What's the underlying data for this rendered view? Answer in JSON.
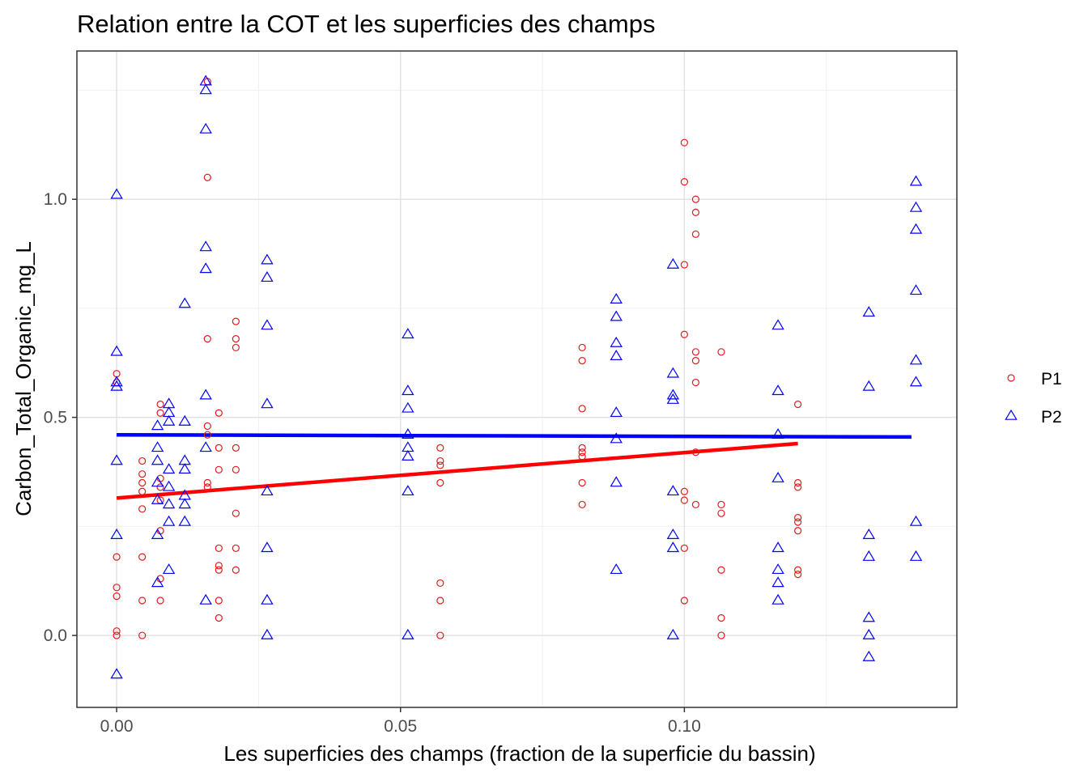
{
  "chart_data": {
    "type": "scatter",
    "title": "Relation entre la COT et les superficies des champs",
    "xlabel": "Les superficies des champs (fraction de la superficie du bassin)",
    "ylabel": "Carbon_Total_Organic_mg_L",
    "xlim": [
      -0.007,
      0.148
    ],
    "ylim": [
      -0.165,
      1.34
    ],
    "x_ticks": [
      0.0,
      0.05,
      0.1
    ],
    "x_tick_labels": [
      "0.00",
      "0.05",
      "0.10"
    ],
    "x_minor_ticks": [
      0.025,
      0.075,
      0.125
    ],
    "y_ticks": [
      0.0,
      0.5,
      1.0
    ],
    "y_tick_labels": [
      "0.0",
      "0.5",
      "1.0"
    ],
    "y_minor_ticks": [
      0.25,
      0.75,
      1.25
    ],
    "grid": true,
    "legend_position": "right",
    "series": [
      {
        "name": "P1",
        "color": "#e31a1c",
        "marker": "circle",
        "trend": {
          "x": [
            0.0,
            0.12
          ],
          "y": [
            0.315,
            0.44
          ]
        },
        "points": [
          [
            0.0,
            0.6
          ],
          [
            0.0,
            0.58
          ],
          [
            0.0,
            0.18
          ],
          [
            0.0,
            0.11
          ],
          [
            0.0,
            0.09
          ],
          [
            0.0,
            0.01
          ],
          [
            0.0,
            0.0
          ],
          [
            0.0045,
            0.4
          ],
          [
            0.0045,
            0.37
          ],
          [
            0.0045,
            0.35
          ],
          [
            0.0045,
            0.33
          ],
          [
            0.0045,
            0.29
          ],
          [
            0.0045,
            0.18
          ],
          [
            0.0045,
            0.08
          ],
          [
            0.0045,
            0.0
          ],
          [
            0.0077,
            0.53
          ],
          [
            0.0077,
            0.51
          ],
          [
            0.0077,
            0.36
          ],
          [
            0.0077,
            0.34
          ],
          [
            0.0077,
            0.31
          ],
          [
            0.0077,
            0.24
          ],
          [
            0.0077,
            0.13
          ],
          [
            0.0077,
            0.08
          ],
          [
            0.016,
            1.27
          ],
          [
            0.016,
            1.05
          ],
          [
            0.016,
            0.68
          ],
          [
            0.016,
            0.48
          ],
          [
            0.016,
            0.46
          ],
          [
            0.016,
            0.35
          ],
          [
            0.016,
            0.34
          ],
          [
            0.018,
            0.51
          ],
          [
            0.018,
            0.43
          ],
          [
            0.018,
            0.38
          ],
          [
            0.018,
            0.2
          ],
          [
            0.018,
            0.16
          ],
          [
            0.018,
            0.15
          ],
          [
            0.018,
            0.08
          ],
          [
            0.018,
            0.04
          ],
          [
            0.021,
            0.72
          ],
          [
            0.021,
            0.68
          ],
          [
            0.021,
            0.66
          ],
          [
            0.021,
            0.43
          ],
          [
            0.021,
            0.38
          ],
          [
            0.021,
            0.28
          ],
          [
            0.021,
            0.2
          ],
          [
            0.021,
            0.15
          ],
          [
            0.057,
            0.43
          ],
          [
            0.057,
            0.4
          ],
          [
            0.057,
            0.39
          ],
          [
            0.057,
            0.35
          ],
          [
            0.057,
            0.12
          ],
          [
            0.057,
            0.08
          ],
          [
            0.057,
            0.0
          ],
          [
            0.082,
            0.66
          ],
          [
            0.082,
            0.63
          ],
          [
            0.082,
            0.52
          ],
          [
            0.082,
            0.43
          ],
          [
            0.082,
            0.42
          ],
          [
            0.082,
            0.41
          ],
          [
            0.082,
            0.35
          ],
          [
            0.082,
            0.3
          ],
          [
            0.1,
            1.13
          ],
          [
            0.1,
            1.04
          ],
          [
            0.1,
            0.85
          ],
          [
            0.1,
            0.69
          ],
          [
            0.1,
            0.33
          ],
          [
            0.1,
            0.31
          ],
          [
            0.1,
            0.2
          ],
          [
            0.1,
            0.08
          ],
          [
            0.102,
            1.0
          ],
          [
            0.102,
            0.97
          ],
          [
            0.102,
            0.92
          ],
          [
            0.102,
            0.65
          ],
          [
            0.102,
            0.63
          ],
          [
            0.102,
            0.58
          ],
          [
            0.102,
            0.42
          ],
          [
            0.102,
            0.3
          ],
          [
            0.1065,
            0.65
          ],
          [
            0.1065,
            0.3
          ],
          [
            0.1065,
            0.28
          ],
          [
            0.1065,
            0.15
          ],
          [
            0.1065,
            0.04
          ],
          [
            0.1065,
            0.0
          ],
          [
            0.12,
            0.53
          ],
          [
            0.12,
            0.35
          ],
          [
            0.12,
            0.34
          ],
          [
            0.12,
            0.27
          ],
          [
            0.12,
            0.26
          ],
          [
            0.12,
            0.24
          ],
          [
            0.12,
            0.15
          ],
          [
            0.12,
            0.14
          ]
        ]
      },
      {
        "name": "P2",
        "color": "#0000ff",
        "marker": "triangle",
        "trend": {
          "x": [
            0.0,
            0.14
          ],
          "y": [
            0.46,
            0.455
          ]
        },
        "points": [
          [
            0.0,
            1.01
          ],
          [
            0.0,
            0.65
          ],
          [
            0.0,
            0.58
          ],
          [
            0.0,
            0.57
          ],
          [
            0.0,
            0.4
          ],
          [
            0.0,
            0.23
          ],
          [
            0.0,
            -0.09
          ],
          [
            0.0072,
            0.48
          ],
          [
            0.0072,
            0.43
          ],
          [
            0.0072,
            0.4
          ],
          [
            0.0072,
            0.35
          ],
          [
            0.0072,
            0.31
          ],
          [
            0.0072,
            0.23
          ],
          [
            0.0072,
            0.12
          ],
          [
            0.0092,
            0.53
          ],
          [
            0.0092,
            0.51
          ],
          [
            0.0092,
            0.49
          ],
          [
            0.0092,
            0.38
          ],
          [
            0.0092,
            0.34
          ],
          [
            0.0092,
            0.3
          ],
          [
            0.0092,
            0.26
          ],
          [
            0.0092,
            0.15
          ],
          [
            0.012,
            0.76
          ],
          [
            0.012,
            0.49
          ],
          [
            0.012,
            0.4
          ],
          [
            0.012,
            0.38
          ],
          [
            0.012,
            0.32
          ],
          [
            0.012,
            0.3
          ],
          [
            0.012,
            0.26
          ],
          [
            0.0157,
            1.27
          ],
          [
            0.0157,
            1.25
          ],
          [
            0.0157,
            1.16
          ],
          [
            0.0157,
            0.89
          ],
          [
            0.0157,
            0.84
          ],
          [
            0.0157,
            0.55
          ],
          [
            0.0157,
            0.43
          ],
          [
            0.0157,
            0.08
          ],
          [
            0.0265,
            0.86
          ],
          [
            0.0265,
            0.82
          ],
          [
            0.0265,
            0.71
          ],
          [
            0.0265,
            0.53
          ],
          [
            0.0265,
            0.33
          ],
          [
            0.0265,
            0.2
          ],
          [
            0.0265,
            0.08
          ],
          [
            0.0265,
            0.0
          ],
          [
            0.0513,
            0.69
          ],
          [
            0.0513,
            0.56
          ],
          [
            0.0513,
            0.52
          ],
          [
            0.0513,
            0.46
          ],
          [
            0.0513,
            0.43
          ],
          [
            0.0513,
            0.41
          ],
          [
            0.0513,
            0.33
          ],
          [
            0.0513,
            0.0
          ],
          [
            0.088,
            0.77
          ],
          [
            0.088,
            0.73
          ],
          [
            0.088,
            0.67
          ],
          [
            0.088,
            0.64
          ],
          [
            0.088,
            0.51
          ],
          [
            0.088,
            0.45
          ],
          [
            0.088,
            0.35
          ],
          [
            0.088,
            0.15
          ],
          [
            0.098,
            0.85
          ],
          [
            0.098,
            0.6
          ],
          [
            0.098,
            0.55
          ],
          [
            0.098,
            0.54
          ],
          [
            0.098,
            0.33
          ],
          [
            0.098,
            0.23
          ],
          [
            0.098,
            0.2
          ],
          [
            0.098,
            0.0
          ],
          [
            0.1165,
            0.71
          ],
          [
            0.1165,
            0.56
          ],
          [
            0.1165,
            0.46
          ],
          [
            0.1165,
            0.36
          ],
          [
            0.1165,
            0.2
          ],
          [
            0.1165,
            0.15
          ],
          [
            0.1165,
            0.12
          ],
          [
            0.1165,
            0.08
          ],
          [
            0.1325,
            0.74
          ],
          [
            0.1325,
            0.57
          ],
          [
            0.1325,
            0.23
          ],
          [
            0.1325,
            0.18
          ],
          [
            0.1325,
            0.04
          ],
          [
            0.1325,
            0.0
          ],
          [
            0.1325,
            -0.05
          ],
          [
            0.1408,
            1.04
          ],
          [
            0.1408,
            0.98
          ],
          [
            0.1408,
            0.93
          ],
          [
            0.1408,
            0.79
          ],
          [
            0.1408,
            0.63
          ],
          [
            0.1408,
            0.58
          ],
          [
            0.1408,
            0.26
          ],
          [
            0.1408,
            0.18
          ]
        ]
      }
    ]
  }
}
